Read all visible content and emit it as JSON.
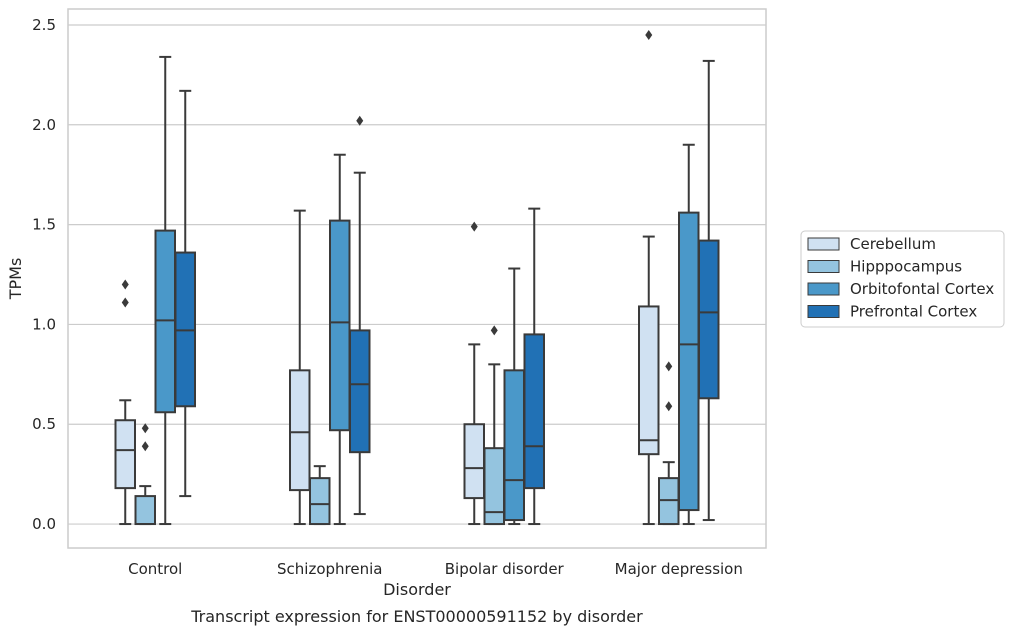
{
  "chart_data": {
    "type": "box",
    "title": "",
    "caption": "Transcript expression for ENST00000591152 by disorder",
    "xlabel": "Disorder",
    "ylabel": "TPMs",
    "ylim": [
      -0.12,
      2.58
    ],
    "yticks": [
      "0.0",
      "0.5",
      "1.0",
      "1.5",
      "2.0",
      "2.5"
    ],
    "grid": true,
    "legend_position": "right",
    "categories": [
      "Control",
      "Schizophrenia",
      "Bipolar disorder",
      "Major depression"
    ],
    "series": [
      {
        "name": "Cerebellum",
        "color": "#d0e1f2",
        "boxes": [
          {
            "lower": 0.0,
            "q1": 0.18,
            "median": 0.37,
            "q3": 0.52,
            "upper": 0.62,
            "outliers": [
              1.11,
              1.2
            ]
          },
          {
            "lower": 0.0,
            "q1": 0.17,
            "median": 0.46,
            "q3": 0.77,
            "upper": 1.57,
            "outliers": []
          },
          {
            "lower": 0.0,
            "q1": 0.13,
            "median": 0.28,
            "q3": 0.5,
            "upper": 0.9,
            "outliers": [
              1.49
            ]
          },
          {
            "lower": 0.0,
            "q1": 0.35,
            "median": 0.42,
            "q3": 1.09,
            "upper": 1.44,
            "outliers": [
              2.45
            ]
          }
        ]
      },
      {
        "name": "Hipppocampus",
        "color": "#94c4df",
        "boxes": [
          {
            "lower": 0.0,
            "q1": 0.0,
            "median": 0.0,
            "q3": 0.14,
            "upper": 0.19,
            "outliers": [
              0.39,
              0.48
            ]
          },
          {
            "lower": 0.0,
            "q1": 0.0,
            "median": 0.1,
            "q3": 0.23,
            "upper": 0.29,
            "outliers": []
          },
          {
            "lower": 0.0,
            "q1": 0.0,
            "median": 0.06,
            "q3": 0.38,
            "upper": 0.8,
            "outliers": [
              0.97
            ]
          },
          {
            "lower": 0.0,
            "q1": 0.0,
            "median": 0.12,
            "q3": 0.23,
            "upper": 0.31,
            "outliers": [
              0.59,
              0.79
            ]
          }
        ]
      },
      {
        "name": "Orbitofontal Cortex",
        "color": "#4a98c9",
        "boxes": [
          {
            "lower": 0.0,
            "q1": 0.56,
            "median": 1.02,
            "q3": 1.47,
            "upper": 2.34,
            "outliers": []
          },
          {
            "lower": 0.0,
            "q1": 0.47,
            "median": 1.01,
            "q3": 1.52,
            "upper": 1.85,
            "outliers": []
          },
          {
            "lower": 0.0,
            "q1": 0.02,
            "median": 0.22,
            "q3": 0.77,
            "upper": 1.28,
            "outliers": []
          },
          {
            "lower": 0.0,
            "q1": 0.07,
            "median": 0.9,
            "q3": 1.56,
            "upper": 1.9,
            "outliers": []
          }
        ]
      },
      {
        "name": "Prefrontal Cortex",
        "color": "#2171b5",
        "boxes": [
          {
            "lower": 0.14,
            "q1": 0.59,
            "median": 0.97,
            "q3": 1.36,
            "upper": 2.17,
            "outliers": []
          },
          {
            "lower": 0.05,
            "q1": 0.36,
            "median": 0.7,
            "q3": 0.97,
            "upper": 1.76,
            "outliers": [
              2.02
            ]
          },
          {
            "lower": 0.0,
            "q1": 0.18,
            "median": 0.39,
            "q3": 0.95,
            "upper": 1.58,
            "outliers": []
          },
          {
            "lower": 0.02,
            "q1": 0.63,
            "median": 1.06,
            "q3": 1.42,
            "upper": 2.32,
            "outliers": []
          }
        ]
      }
    ]
  }
}
